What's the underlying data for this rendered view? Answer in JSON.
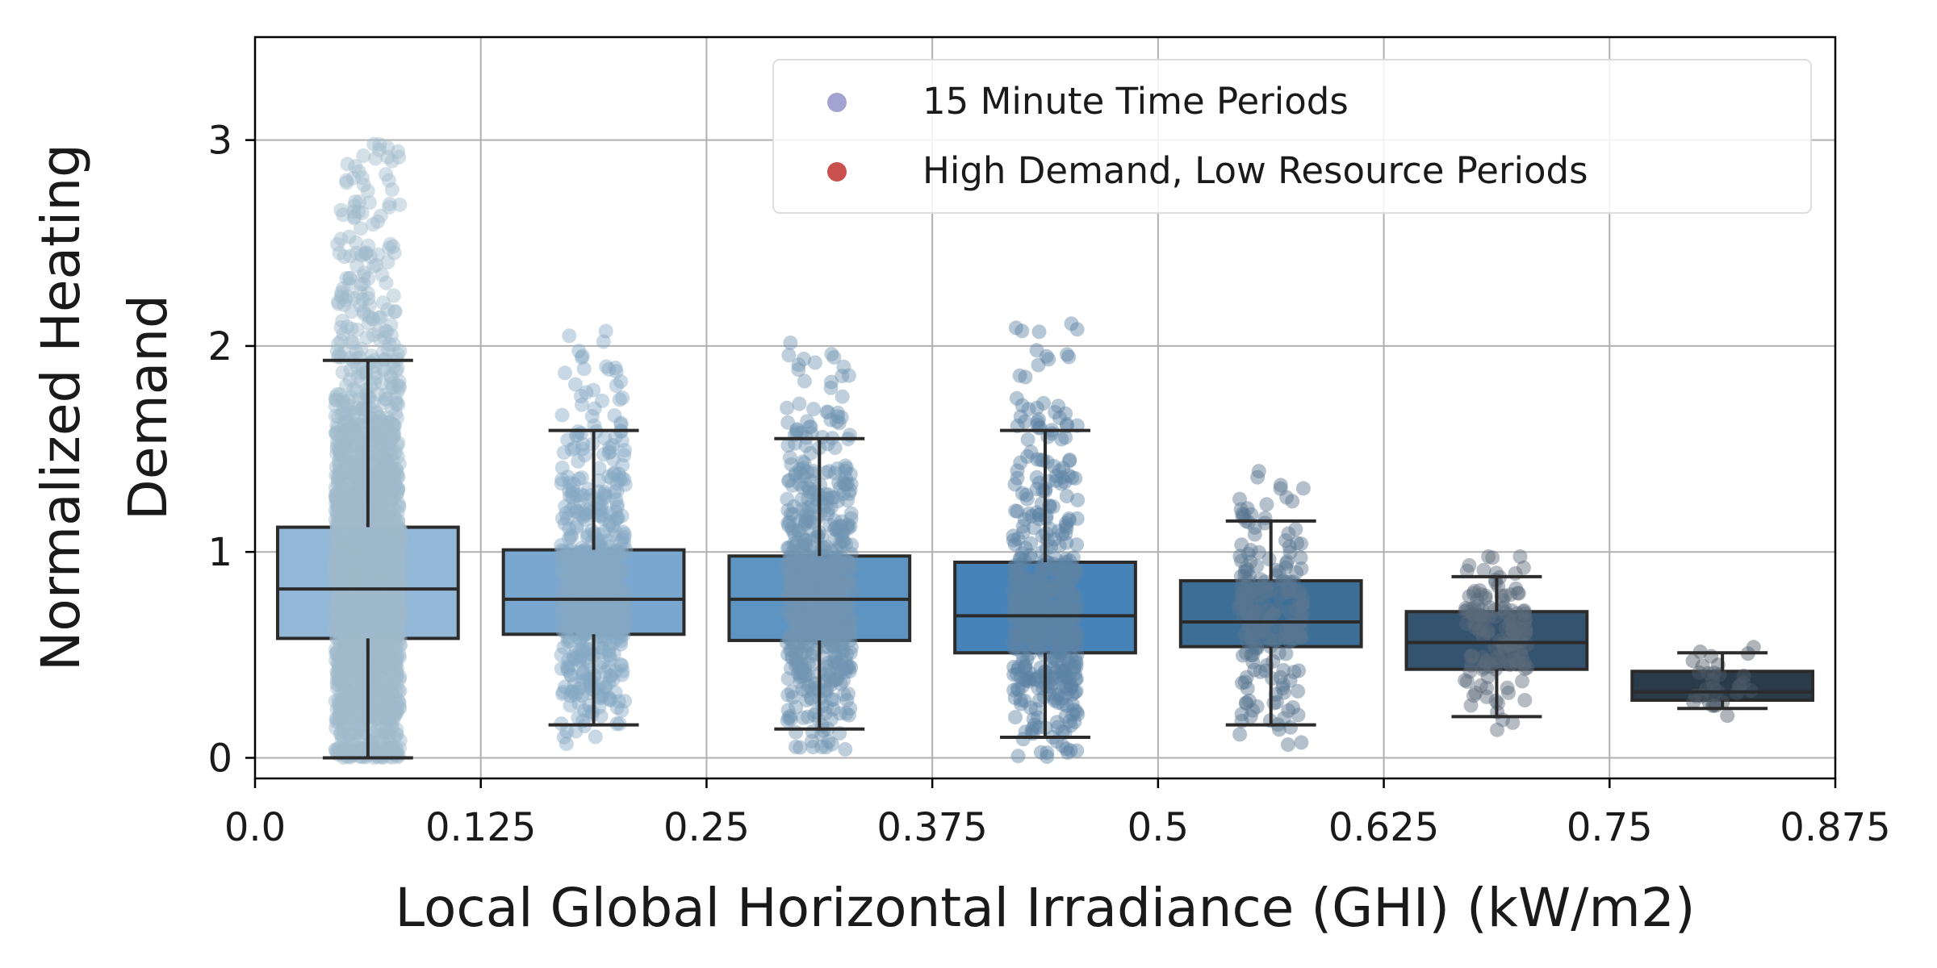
{
  "chart_data": {
    "type": "box",
    "xlabel": "Local Global Horizontal Irradiance (GHI) (kW/m2)",
    "ylabel_lines": [
      "Normalized Heating",
      "Demand"
    ],
    "xlim": [
      0,
      0.875
    ],
    "ylim": [
      -0.1,
      3.5
    ],
    "x_ticks": [
      {
        "value": 0,
        "label": "0.0"
      },
      {
        "value": 0.125,
        "label": "0.125"
      },
      {
        "value": 0.25,
        "label": "0.25"
      },
      {
        "value": 0.375,
        "label": "0.375"
      },
      {
        "value": 0.5,
        "label": "0.5"
      },
      {
        "value": 0.625,
        "label": "0.625"
      },
      {
        "value": 0.75,
        "label": "0.75"
      },
      {
        "value": 0.875,
        "label": "0.875"
      }
    ],
    "y_ticks": [
      {
        "value": 0,
        "label": "0"
      },
      {
        "value": 1,
        "label": "1"
      },
      {
        "value": 2,
        "label": "2"
      },
      {
        "value": 3,
        "label": "3"
      }
    ],
    "grid": true,
    "legend": {
      "position": "top-right",
      "entries": [
        {
          "label": "15 Minute Time Periods",
          "color": "#a3a3d1"
        },
        {
          "label": "High Demand, Low Resource Periods",
          "color": "#c9504c"
        }
      ]
    },
    "boxes": [
      {
        "x_center": 0.0625,
        "x_left": 0.0125,
        "x_right": 0.1125,
        "whisker_low": 0.0,
        "q1": 0.58,
        "median": 0.82,
        "q3": 1.12,
        "whisker_high": 1.93,
        "fill": "#93b7d6",
        "point_color": "#9fbacd"
      },
      {
        "x_center": 0.1875,
        "x_left": 0.1375,
        "x_right": 0.2375,
        "whisker_low": 0.16,
        "q1": 0.6,
        "median": 0.77,
        "q3": 1.01,
        "whisker_high": 1.59,
        "fill": "#7aa7cf",
        "point_color": "#86a8c3"
      },
      {
        "x_center": 0.3125,
        "x_left": 0.2625,
        "x_right": 0.3625,
        "whisker_low": 0.14,
        "q1": 0.57,
        "median": 0.77,
        "q3": 0.98,
        "whisker_high": 1.55,
        "fill": "#5e94c2",
        "point_color": "#7094b2"
      },
      {
        "x_center": 0.4375,
        "x_left": 0.3875,
        "x_right": 0.4875,
        "whisker_low": 0.1,
        "q1": 0.51,
        "median": 0.69,
        "q3": 0.95,
        "whisker_high": 1.59,
        "fill": "#4683b8",
        "point_color": "#5d82a3"
      },
      {
        "x_center": 0.5625,
        "x_left": 0.5125,
        "x_right": 0.6125,
        "whisker_low": 0.16,
        "q1": 0.54,
        "median": 0.66,
        "q3": 0.86,
        "whisker_high": 1.15,
        "fill": "#3d6e96",
        "point_color": "#587590"
      },
      {
        "x_center": 0.6875,
        "x_left": 0.6375,
        "x_right": 0.7375,
        "whisker_low": 0.2,
        "q1": 0.43,
        "median": 0.56,
        "q3": 0.71,
        "whisker_high": 0.88,
        "fill": "#34536f",
        "point_color": "#5a6b7a"
      },
      {
        "x_center": 0.8125,
        "x_left": 0.7625,
        "x_right": 0.8625,
        "whisker_low": 0.24,
        "q1": 0.28,
        "median": 0.32,
        "q3": 0.42,
        "whisker_high": 0.51,
        "fill": "#2a3b4a",
        "point_color": "#4d5c69"
      }
    ],
    "points_per_box": [
      2600,
      600,
      650,
      520,
      200,
      130,
      30
    ],
    "point_spread": [
      0.7,
      0.55,
      0.5,
      0.5,
      0.45,
      0.4,
      0.3
    ]
  }
}
